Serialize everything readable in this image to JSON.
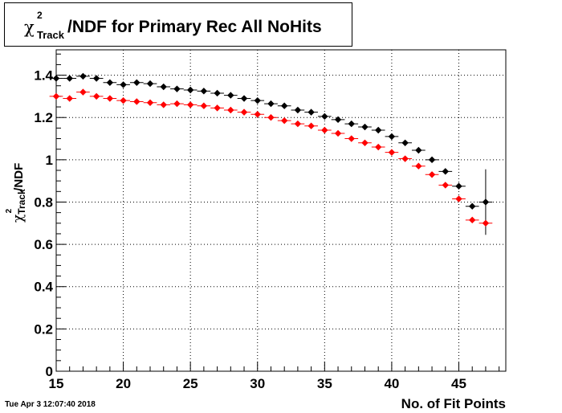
{
  "title": {
    "symbol": "χ",
    "superscript": "2",
    "subscript": "Track",
    "text": "/NDF for Primary Rec All NoHits"
  },
  "timestamp": "Tue Apr  3 12:07:40 2018",
  "chart_data": {
    "type": "scatter",
    "xlabel": "No. of Fit Points",
    "ylabel": "χ²_Track /NDF",
    "ylabel_parts": {
      "symbol": "χ",
      "superscript": "2",
      "subscript": "Track",
      "text": "/NDF"
    },
    "xlim": [
      15,
      48.5
    ],
    "ylim": [
      0,
      1.52
    ],
    "x_ticks": [
      15,
      20,
      25,
      30,
      35,
      40,
      45
    ],
    "x_tick_labels": [
      "15",
      "20",
      "25",
      "30",
      "35",
      "40",
      "45"
    ],
    "y_ticks": [
      0,
      0.2,
      0.4,
      0.6,
      0.8,
      1,
      1.2,
      1.4
    ],
    "y_tick_labels": [
      "0",
      "0.2",
      "0.4",
      "0.6",
      "0.8",
      "1",
      "1.2",
      "1.4"
    ],
    "grid": true,
    "series": [
      {
        "color": "#000000",
        "x": [
          15,
          16,
          17,
          18,
          19,
          20,
          21,
          22,
          23,
          24,
          25,
          26,
          27,
          28,
          29,
          30,
          31,
          32,
          33,
          34,
          35,
          36,
          37,
          38,
          39,
          40,
          41,
          42,
          43,
          44,
          45,
          46,
          47
        ],
        "y": [
          1.385,
          1.385,
          1.395,
          1.385,
          1.365,
          1.355,
          1.365,
          1.36,
          1.345,
          1.335,
          1.33,
          1.325,
          1.315,
          1.305,
          1.29,
          1.28,
          1.265,
          1.255,
          1.235,
          1.225,
          1.205,
          1.19,
          1.17,
          1.155,
          1.14,
          1.11,
          1.08,
          1.045,
          1.0,
          0.945,
          0.875,
          0.78,
          0.8
        ],
        "yerr": [
          0.003,
          0.003,
          0.003,
          0.003,
          0.003,
          0.003,
          0.003,
          0.003,
          0.003,
          0.003,
          0.003,
          0.003,
          0.003,
          0.003,
          0.003,
          0.003,
          0.003,
          0.003,
          0.003,
          0.003,
          0.004,
          0.004,
          0.004,
          0.004,
          0.005,
          0.005,
          0.006,
          0.007,
          0.008,
          0.01,
          0.015,
          0.01,
          0.155
        ]
      },
      {
        "color": "#ff0000",
        "x": [
          15,
          16,
          17,
          18,
          19,
          20,
          21,
          22,
          23,
          24,
          25,
          26,
          27,
          28,
          29,
          30,
          31,
          32,
          33,
          34,
          35,
          36,
          37,
          38,
          39,
          40,
          41,
          42,
          43,
          44,
          45,
          46,
          47
        ],
        "y": [
          1.3,
          1.29,
          1.32,
          1.3,
          1.29,
          1.28,
          1.275,
          1.27,
          1.26,
          1.265,
          1.26,
          1.255,
          1.245,
          1.235,
          1.225,
          1.215,
          1.2,
          1.185,
          1.17,
          1.16,
          1.14,
          1.125,
          1.1,
          1.08,
          1.06,
          1.035,
          1.005,
          0.97,
          0.93,
          0.88,
          0.815,
          0.715,
          0.7
        ]
      }
    ]
  }
}
